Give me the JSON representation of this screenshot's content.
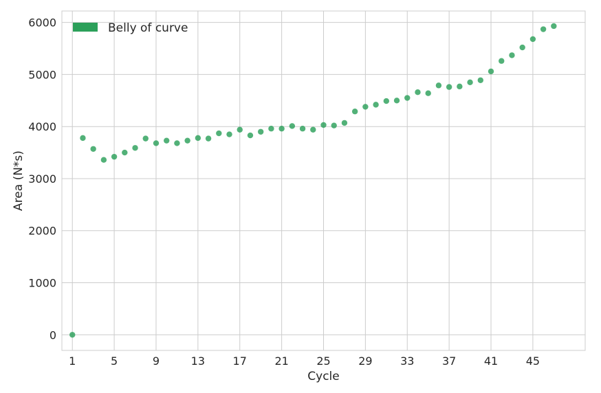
{
  "chart_data": {
    "type": "scatter",
    "title": "",
    "xlabel": "Cycle",
    "ylabel": "Area (N*s)",
    "xlim": [
      0,
      50
    ],
    "ylim": [
      -300,
      6220
    ],
    "xticks": [
      1,
      5,
      9,
      13,
      17,
      21,
      25,
      29,
      33,
      37,
      41,
      45
    ],
    "yticks": [
      0,
      1000,
      2000,
      3000,
      4000,
      5000,
      6000
    ],
    "grid": true,
    "legend": "top-left",
    "series": [
      {
        "name": "Belly of curve",
        "color": "#2ca05a",
        "x": [
          1,
          2,
          3,
          4,
          5,
          6,
          7,
          8,
          9,
          10,
          11,
          12,
          13,
          14,
          15,
          16,
          17,
          18,
          19,
          20,
          21,
          22,
          23,
          24,
          25,
          26,
          27,
          28,
          29,
          30,
          31,
          32,
          33,
          34,
          35,
          36,
          37,
          38,
          39,
          40,
          41,
          42,
          43,
          44,
          45,
          46,
          47
        ],
        "y": [
          0,
          3780,
          3570,
          3360,
          3420,
          3500,
          3590,
          3770,
          3680,
          3730,
          3680,
          3730,
          3780,
          3770,
          3870,
          3850,
          3940,
          3830,
          3900,
          3960,
          3960,
          4010,
          3960,
          3940,
          4030,
          4020,
          4070,
          4290,
          4380,
          4420,
          4490,
          4500,
          4550,
          4660,
          4640,
          4790,
          4760,
          4770,
          4850,
          4890,
          5060,
          5260,
          5370,
          5520,
          5680,
          5870,
          5930
        ]
      }
    ]
  }
}
